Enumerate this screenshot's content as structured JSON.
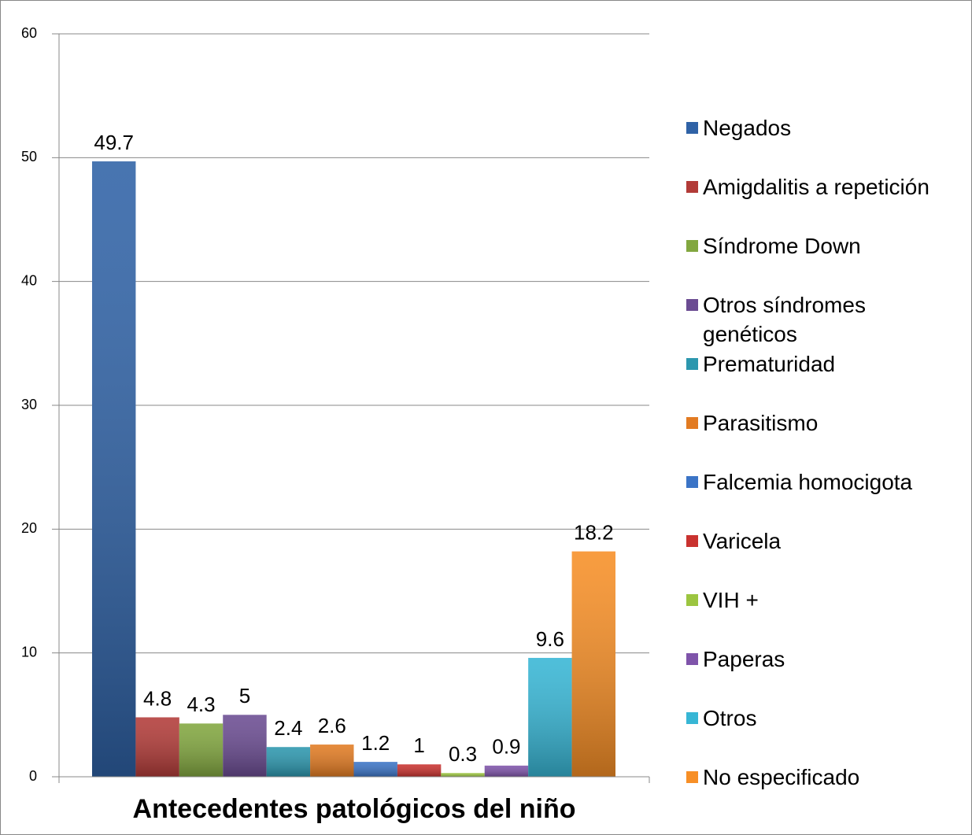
{
  "chart_data": {
    "type": "bar",
    "x_label": "Antecedentes patológicos del niño",
    "series": [
      {
        "name": "Negados",
        "color": "#2f62a6",
        "values": [
          49.7
        ]
      },
      {
        "name": "Amigdalitis a repetición",
        "color": "#b23b38",
        "values": [
          4.8
        ]
      },
      {
        "name": "Síndrome Down",
        "color": "#82a73f",
        "values": [
          4.3
        ]
      },
      {
        "name": "Otros síndromes genéticos",
        "color": "#6b4c92",
        "values": [
          5
        ]
      },
      {
        "name": "Prematuridad",
        "color": "#2c97ae",
        "values": [
          2.4
        ]
      },
      {
        "name": "Parasitismo",
        "color": "#e27b22",
        "values": [
          2.6
        ]
      },
      {
        "name": "Falcemia homocigota",
        "color": "#3b74c6",
        "values": [
          1.2
        ]
      },
      {
        "name": "Varicela",
        "color": "#c9322f",
        "values": [
          1
        ]
      },
      {
        "name": "VIH +",
        "color": "#9cc540",
        "values": [
          0.3
        ]
      },
      {
        "name": "Paperas",
        "color": "#7f54aa",
        "values": [
          0.9
        ]
      },
      {
        "name": "Otros",
        "color": "#37b6d5",
        "values": [
          9.6
        ]
      },
      {
        "name": "No especificado",
        "color": "#f78f26",
        "values": [
          18.2
        ]
      }
    ],
    "ylim": [
      0,
      60
    ],
    "yticks": [
      0,
      10,
      20,
      30,
      40,
      50,
      60
    ],
    "grid": true,
    "legend": "right"
  }
}
